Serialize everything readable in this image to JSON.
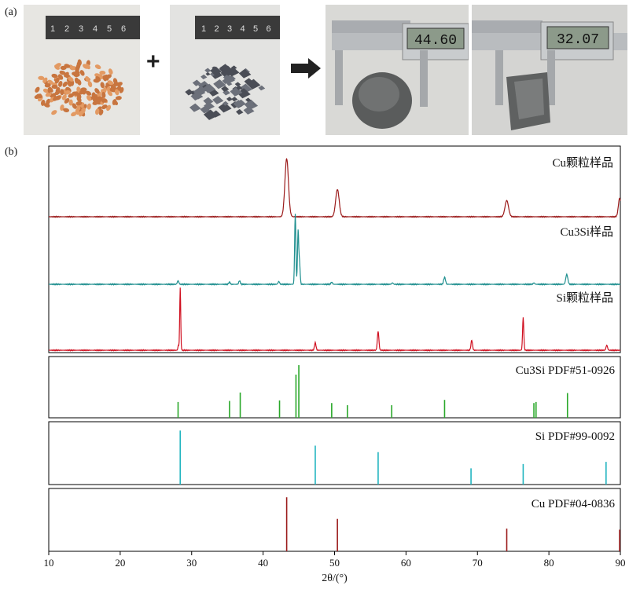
{
  "panel_a_label": "(a)",
  "panel_b_label": "(b)",
  "photos": {
    "ruler_digits": [
      "1",
      "2",
      "3",
      "4",
      "5",
      "6"
    ],
    "caliper_1_reading": "44.60",
    "caliper_2_reading": "32.07",
    "operator_plus": "+",
    "operator_arrow": "→"
  },
  "colors": {
    "cu": "#9b1b1b",
    "cu3si": "#1f8f8f",
    "si": "#d01020",
    "ref_cu3si": "#2aa82a",
    "ref_si": "#22b5c0",
    "ref_cu": "#9b1b1b"
  },
  "chart_data": {
    "type": "line",
    "xlabel": "2θ/(°)",
    "xlim": [
      10,
      90
    ],
    "xticks": [
      10,
      20,
      30,
      40,
      50,
      60,
      70,
      80,
      90
    ],
    "patterns": [
      {
        "name": "Cu颗粒样品",
        "key": "cu",
        "peaks": [
          [
            43.3,
            1.0,
            0.35
          ],
          [
            50.4,
            0.47,
            0.35
          ],
          [
            74.1,
            0.28,
            0.35
          ],
          [
            89.9,
            0.32,
            0.25
          ]
        ]
      },
      {
        "name": "Cu3Si样品",
        "key": "cu3si",
        "peaks": [
          [
            44.5,
            1.0,
            0.12
          ],
          [
            44.9,
            0.75,
            0.12
          ],
          [
            45.1,
            0.3,
            0.12
          ],
          [
            65.4,
            0.1,
            0.18
          ],
          [
            82.5,
            0.14,
            0.2
          ],
          [
            28.1,
            0.05,
            0.15
          ],
          [
            35.3,
            0.03,
            0.15
          ],
          [
            36.7,
            0.05,
            0.15
          ],
          [
            42.2,
            0.04,
            0.15
          ],
          [
            49.6,
            0.03,
            0.15
          ],
          [
            58.1,
            0.02,
            0.15
          ],
          [
            77.9,
            0.02,
            0.15
          ]
        ]
      },
      {
        "name": "Si颗粒样品",
        "key": "si",
        "peaks": [
          [
            28.4,
            1.0,
            0.1
          ],
          [
            28.15,
            0.08,
            0.1
          ],
          [
            47.3,
            0.12,
            0.15
          ],
          [
            56.1,
            0.3,
            0.15
          ],
          [
            69.2,
            0.16,
            0.15
          ],
          [
            76.4,
            0.52,
            0.12
          ],
          [
            88.1,
            0.08,
            0.15
          ]
        ]
      }
    ],
    "references": [
      {
        "name": "Cu3Si PDF#51-0926",
        "key": "ref_cu3si",
        "lines": [
          [
            28.1,
            0.3
          ],
          [
            35.3,
            0.32
          ],
          [
            36.8,
            0.48
          ],
          [
            42.3,
            0.33
          ],
          [
            44.6,
            0.82
          ],
          [
            45.0,
            1.0
          ],
          [
            49.6,
            0.28
          ],
          [
            51.8,
            0.24
          ],
          [
            58.0,
            0.24
          ],
          [
            65.4,
            0.34
          ],
          [
            77.9,
            0.28
          ],
          [
            78.2,
            0.3
          ],
          [
            82.6,
            0.47
          ]
        ]
      },
      {
        "name": "Si PDF#99-0092",
        "key": "ref_si",
        "lines": [
          [
            28.4,
            1.0
          ],
          [
            47.3,
            0.72
          ],
          [
            56.1,
            0.6
          ],
          [
            69.1,
            0.3
          ],
          [
            76.4,
            0.38
          ],
          [
            88.0,
            0.42
          ]
        ]
      },
      {
        "name": "Cu PDF#04-0836",
        "key": "ref_cu",
        "lines": [
          [
            43.3,
            1.0
          ],
          [
            50.4,
            0.6
          ],
          [
            74.1,
            0.42
          ],
          [
            89.9,
            0.4
          ]
        ]
      }
    ]
  }
}
